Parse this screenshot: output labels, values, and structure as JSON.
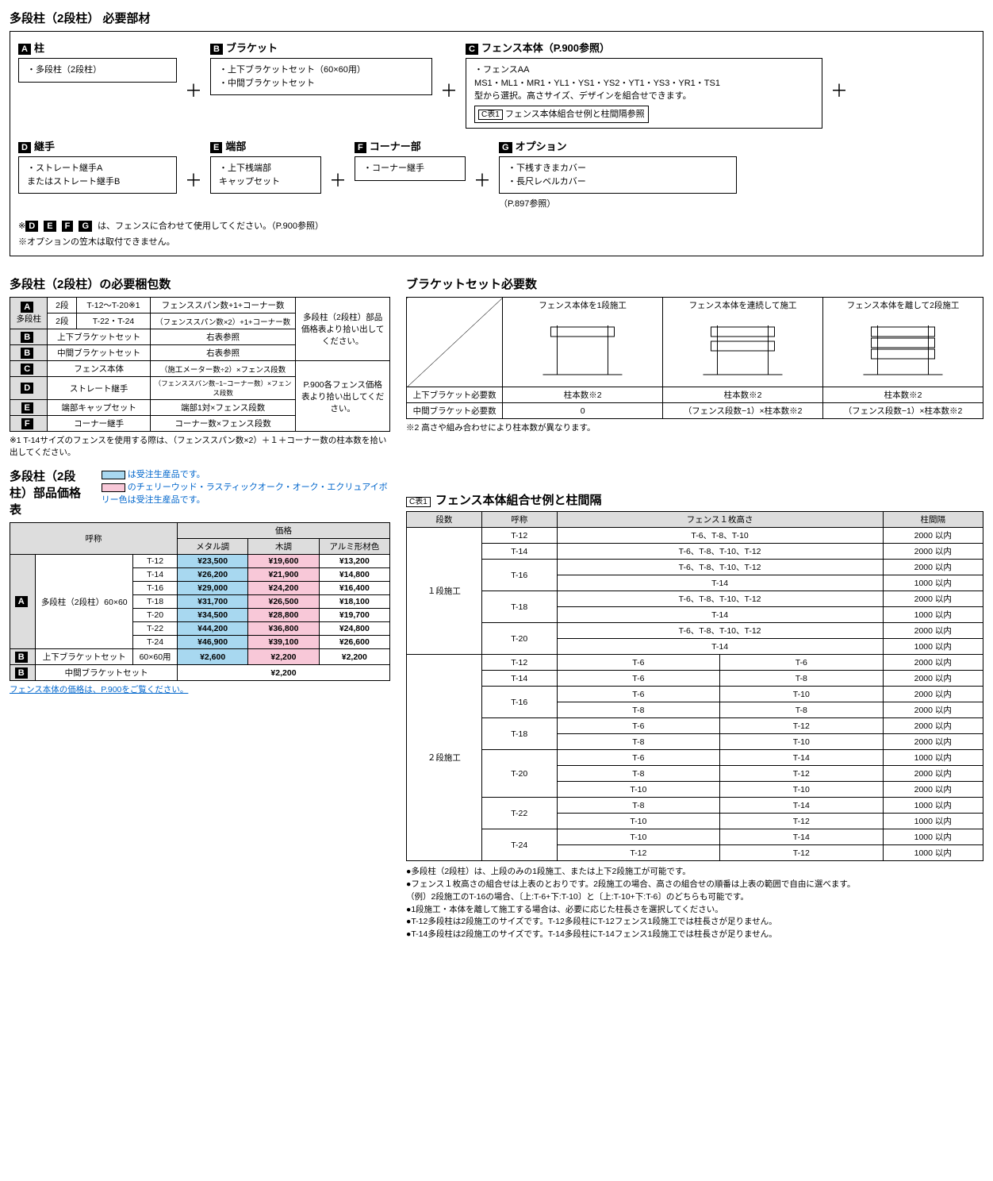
{
  "main_title": "多段柱（2段柱） 必要部材",
  "components": {
    "A": {
      "label": "柱",
      "items": [
        "・多段柱（2段柱）"
      ]
    },
    "B": {
      "label": "ブラケット",
      "items": [
        "・上下ブラケットセット（60×60用）",
        "・中間ブラケットセット"
      ]
    },
    "C": {
      "label": "フェンス本体（P.900参照）",
      "items": [
        "・フェンスAA",
        "MS1・ML1・MR1・YL1・YS1・YS2・YT1・YS3・YR1・TS1",
        "型から選択。高さサイズ、デザインを組合せできます。"
      ],
      "boxed": "フェンス本体組合せ例と柱間隔参照"
    },
    "D": {
      "label": "継手",
      "items": [
        "・ストレート継手A",
        "またはストレート継手B"
      ]
    },
    "E": {
      "label": "端部",
      "items": [
        "・上下桟端部",
        "キャップセット"
      ]
    },
    "F": {
      "label": "コーナー部",
      "items": [
        "・コーナー継手"
      ]
    },
    "G": {
      "label": "オプション",
      "items": [
        "・下桟すきまカバー",
        "・長尺レベルカバー"
      ],
      "ref": "（P.897参照）"
    }
  },
  "comp_notes": [
    "※D E F G は、フェンスに合わせて使用してください。（P.900参照）",
    "※オプションの笠木は取付できません。"
  ],
  "pkg_title": "多段柱（2段柱）の必要梱包数",
  "pkg_table": {
    "rows": [
      {
        "b": "A",
        "rs": 2,
        "n": "多段柱",
        "c1": "2段",
        "c2": "T-12〜T-20※1",
        "c3": "フェンススパン数+1+コーナー数",
        "note": "多段柱（2段柱）部品価格表より拾い出してください。",
        "nrs": 3
      },
      {
        "c1": "2段",
        "c2": "T-22・T-24",
        "c3": "（フェンススパン数×2）+1+コーナー数"
      },
      {
        "b": "B",
        "n": "上下ブラケットセット",
        "c3": "右表参照"
      },
      {
        "b": "B",
        "n": "中間ブラケットセット",
        "c3": "右表参照",
        "note": "P.900各フェンス価格表より拾い出してください。",
        "nrs": 4
      },
      {
        "b": "C",
        "n": "フェンス本体",
        "c3": "（施工メーター数÷2）×フェンス段数"
      },
      {
        "b": "D",
        "n": "ストレート継手",
        "c3": "（フェンススパン数−1−コーナー数）×フェンス段数"
      },
      {
        "b": "E",
        "n": "端部キャップセット",
        "c3": "端部1対×フェンス段数"
      },
      {
        "b": "F",
        "n": "コーナー継手",
        "c3": "コーナー数×フェンス段数"
      }
    ]
  },
  "pkg_note": "※1 T-14サイズのフェンスを使用する際は、（フェンススパン数×2）＋１＋コーナー数の柱本数を拾い出してください。",
  "bracket_title": "ブラケットセット必要数",
  "bracket_table": {
    "cols": [
      "フェンス本体を1段施工",
      "フェンス本体を連続して施工",
      "フェンス本体を離して2段施工"
    ],
    "rows": [
      {
        "l": "上下ブラケット必要数",
        "v": [
          "柱本数※2",
          "柱本数※2",
          "柱本数※2"
        ]
      },
      {
        "l": "中間ブラケット必要数",
        "v": [
          "0",
          "（フェンス段数−1）×柱本数※2",
          "（フェンス段数−1）×柱本数※2"
        ]
      }
    ]
  },
  "bracket_note": "※2 高さや組み合わせにより柱本数が異なります。",
  "price_title": "多段柱（2段柱）部品価格表",
  "legend": {
    "blue": "は受注生産品です。",
    "pink": "のチェリーウッド・ラスティックオーク・オーク・エクリュアイボリー色は受注生産品です。"
  },
  "price_headers": {
    "name": "呼称",
    "price": "価格",
    "c1": "メタル調",
    "c2": "木調",
    "c3": "アルミ形材色"
  },
  "price_rows": [
    {
      "b": "A",
      "brs": 7,
      "n": "多段柱（2段柱）60×60",
      "nrs": 7,
      "s": "T-12",
      "p": [
        "¥23,500",
        "¥19,600",
        "¥13,200"
      ]
    },
    {
      "s": "T-14",
      "p": [
        "¥26,200",
        "¥21,900",
        "¥14,800"
      ]
    },
    {
      "s": "T-16",
      "p": [
        "¥29,000",
        "¥24,200",
        "¥16,400"
      ]
    },
    {
      "s": "T-18",
      "p": [
        "¥31,700",
        "¥26,500",
        "¥18,100"
      ]
    },
    {
      "s": "T-20",
      "p": [
        "¥34,500",
        "¥28,800",
        "¥19,700"
      ]
    },
    {
      "s": "T-22",
      "p": [
        "¥44,200",
        "¥36,800",
        "¥24,800"
      ]
    },
    {
      "s": "T-24",
      "p": [
        "¥46,900",
        "¥39,100",
        "¥26,600"
      ]
    }
  ],
  "price_b1": {
    "n": "上下ブラケットセット",
    "s": "60×60用",
    "p": [
      "¥2,600",
      "¥2,200",
      "¥2,200"
    ]
  },
  "price_b2": {
    "n": "中間ブラケットセット",
    "p": "¥2,200"
  },
  "price_note": "フェンス本体の価格は、P.900をご覧ください。",
  "ctable_label": "C表1",
  "ctable_title": "フェンス本体組合せ例と柱間隔",
  "ctable_headers": [
    "段数",
    "呼称",
    "フェンス１枚高さ",
    "柱間隔"
  ],
  "ctable_1dan": {
    "label": "１段施工",
    "rows": [
      {
        "s": "T-12",
        "h": [
          "T-6、T-8、T-10"
        ],
        "gap": [
          "2000 以内"
        ]
      },
      {
        "s": "T-14",
        "h": [
          "T-6、T-8、T-10、T-12"
        ],
        "gap": [
          "2000 以内"
        ]
      },
      {
        "s": "T-16",
        "h": [
          "T-6、T-8、T-10、T-12",
          "T-14"
        ],
        "gap": [
          "2000 以内",
          "1000 以内"
        ]
      },
      {
        "s": "T-18",
        "h": [
          "T-6、T-8、T-10、T-12",
          "T-14"
        ],
        "gap": [
          "2000 以内",
          "1000 以内"
        ]
      },
      {
        "s": "T-20",
        "h": [
          "T-6、T-8、T-10、T-12",
          "T-14"
        ],
        "gap": [
          "2000 以内",
          "1000 以内"
        ]
      }
    ]
  },
  "ctable_2dan": {
    "label": "２段施工",
    "rows": [
      {
        "s": "T-12",
        "h1": [
          "T-6"
        ],
        "h2": [
          "T-6"
        ],
        "gap": [
          "2000 以内"
        ]
      },
      {
        "s": "T-14",
        "h1": [
          "T-6"
        ],
        "h2": [
          "T-8"
        ],
        "gap": [
          "2000 以内"
        ]
      },
      {
        "s": "T-16",
        "h1": [
          "T-6",
          "T-8"
        ],
        "h2": [
          "T-10",
          "T-8"
        ],
        "gap": [
          "2000 以内",
          "2000 以内"
        ]
      },
      {
        "s": "T-18",
        "h1": [
          "T-6",
          "T-8"
        ],
        "h2": [
          "T-12",
          "T-10"
        ],
        "gap": [
          "2000 以内",
          "2000 以内"
        ]
      },
      {
        "s": "T-20",
        "h1": [
          "T-6",
          "T-8",
          "T-10"
        ],
        "h2": [
          "T-14",
          "T-12",
          "T-10"
        ],
        "gap": [
          "1000 以内",
          "2000 以内",
          "2000 以内"
        ]
      },
      {
        "s": "T-22",
        "h1": [
          "T-8",
          "T-10"
        ],
        "h2": [
          "T-14",
          "T-12"
        ],
        "gap": [
          "1000 以内",
          "1000 以内"
        ]
      },
      {
        "s": "T-24",
        "h1": [
          "T-10",
          "T-12"
        ],
        "h2": [
          "T-14",
          "T-12"
        ],
        "gap": [
          "1000 以内",
          "1000 以内"
        ]
      }
    ]
  },
  "ctable_notes": [
    "●多段柱（2段柱）は、上段のみの1段施工、または上下2段施工が可能です。",
    "●フェンス１枚高さの組合せは上表のとおりです。2段施工の場合、高さの組合せの順番は上表の範囲で自由に選べます。",
    "（例）2段施工のT-16の場合、〔上:T-6+下:T-10〕と〔上:T-10+下:T-6〕のどちらも可能です。",
    "●1段施工・本体を離して施工する場合は、必要に応じた柱長さを選択してください。",
    "●T-12多段柱は2段施工のサイズです。T-12多段柱にT-12フェンス1段施工では柱長さが足りません。",
    "●T-14多段柱は2段施工のサイズです。T-14多段柱にT-14フェンス1段施工では柱長さが足りません。"
  ]
}
